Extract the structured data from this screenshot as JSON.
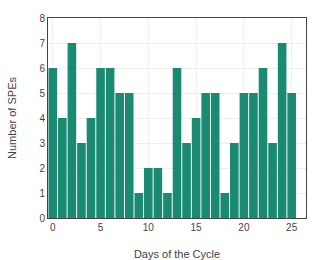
{
  "chart_data": {
    "type": "bar",
    "x": [
      0,
      1,
      2,
      3,
      4,
      5,
      6,
      7,
      8,
      9,
      10,
      11,
      12,
      13,
      14,
      15,
      16,
      17,
      18,
      19,
      20,
      21,
      22,
      23,
      24,
      25
    ],
    "values": [
      6,
      4,
      7,
      3,
      4,
      6,
      6,
      5,
      5,
      1,
      2,
      2,
      1,
      6,
      3,
      4,
      5,
      5,
      1,
      3,
      5,
      5,
      6,
      3,
      7,
      5
    ],
    "color": "#1a8a72",
    "xlabel": "Days of the Cycle",
    "ylabel": "Number of SPEs",
    "xlim": [
      -0.5,
      26.5
    ],
    "ylim": [
      0,
      8
    ],
    "xticks": [
      0,
      5,
      10,
      15,
      20,
      25
    ],
    "yticks": [
      0,
      1,
      2,
      3,
      4,
      5,
      6,
      7,
      8
    ],
    "grid": true
  }
}
